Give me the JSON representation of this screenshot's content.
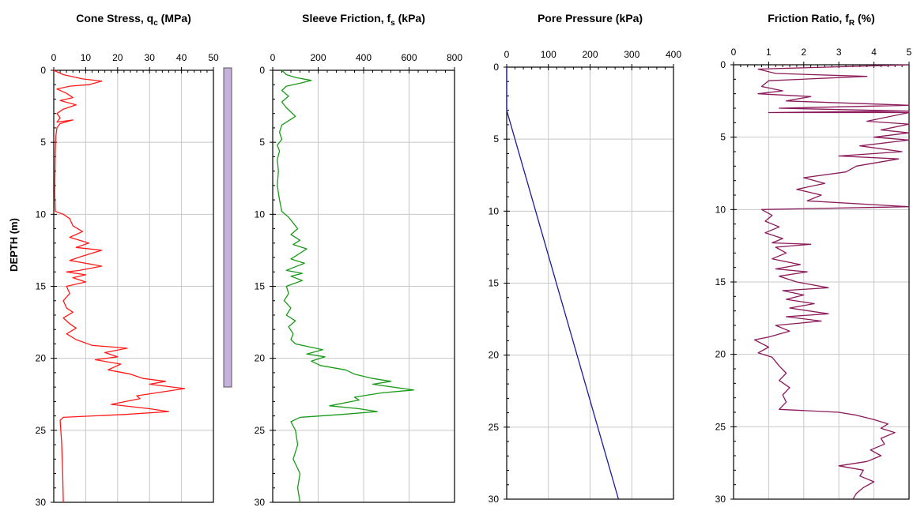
{
  "y_axis_label": "DEPTH  (m)",
  "chart_data": [
    {
      "type": "line",
      "title": "Cone Stress, qc  (MPa)",
      "title_parts": [
        "Cone Stress, q",
        "c",
        "  (MPa)"
      ],
      "xlim": [
        0,
        50
      ],
      "ylim": [
        0,
        30
      ],
      "x_ticks": [
        0,
        10,
        20,
        30,
        40,
        50
      ],
      "y_ticks": [
        0,
        5,
        10,
        15,
        20,
        25,
        30
      ],
      "y_reversed": true,
      "grid": true,
      "x_axis_position": "top",
      "color": "#ff1a1a",
      "series": [
        {
          "points": [
            [
              0,
              0
            ],
            [
              3,
              0.3
            ],
            [
              9,
              0.6
            ],
            [
              15,
              0.75
            ],
            [
              11,
              1.0
            ],
            [
              5,
              1.1
            ],
            [
              1,
              1.3
            ],
            [
              4,
              1.6
            ],
            [
              6,
              1.9
            ],
            [
              2,
              2.1
            ],
            [
              7,
              2.4
            ],
            [
              3,
              2.7
            ],
            [
              1,
              3.0
            ],
            [
              2,
              3.3
            ],
            [
              1,
              3.6
            ],
            [
              6,
              3.45
            ],
            [
              2,
              3.7
            ],
            [
              1,
              4.0
            ],
            [
              0.7,
              4.5
            ],
            [
              0.5,
              5.5
            ],
            [
              0.4,
              7
            ],
            [
              0.3,
              8.5
            ],
            [
              0.5,
              9.8
            ],
            [
              3,
              10.0
            ],
            [
              5,
              10.3
            ],
            [
              6,
              10.8
            ],
            [
              9,
              11.2
            ],
            [
              5,
              11.6
            ],
            [
              11,
              12.0
            ],
            [
              7,
              12.3
            ],
            [
              15,
              12.5
            ],
            [
              9,
              12.9
            ],
            [
              5,
              13.2
            ],
            [
              15,
              13.6
            ],
            [
              8,
              13.9
            ],
            [
              4,
              14.0
            ],
            [
              10,
              14.2
            ],
            [
              6,
              14.4
            ],
            [
              10,
              14.7
            ],
            [
              4,
              15.0
            ],
            [
              5,
              15.5
            ],
            [
              3,
              16.0
            ],
            [
              4,
              16.5
            ],
            [
              6,
              16.8
            ],
            [
              3,
              17.2
            ],
            [
              5,
              17.6
            ],
            [
              7,
              17.9
            ],
            [
              4,
              18.3
            ],
            [
              7,
              18.7
            ],
            [
              12,
              19.1
            ],
            [
              23,
              19.3
            ],
            [
              16,
              19.6
            ],
            [
              20,
              19.9
            ],
            [
              13,
              20.1
            ],
            [
              21,
              20.4
            ],
            [
              17,
              20.8
            ],
            [
              24,
              21.1
            ],
            [
              28,
              21.4
            ],
            [
              35,
              21.6
            ],
            [
              30,
              21.8
            ],
            [
              41,
              22.1
            ],
            [
              35,
              22.3
            ],
            [
              26,
              22.6
            ],
            [
              27,
              22.8
            ],
            [
              18,
              23.2
            ],
            [
              30,
              23.5
            ],
            [
              36,
              23.7
            ],
            [
              22,
              23.9
            ],
            [
              3,
              24.1
            ],
            [
              2,
              24.3
            ],
            [
              2.5,
              26
            ],
            [
              2.8,
              28
            ],
            [
              3,
              30
            ]
          ]
        }
      ]
    },
    {
      "type": "line",
      "title": "Sleeve Friction, fs  (kPa)",
      "title_parts": [
        "Sleeve Friction, f",
        "s",
        "  (kPa)"
      ],
      "xlim": [
        0,
        800
      ],
      "ylim": [
        0,
        30
      ],
      "x_ticks": [
        0,
        200,
        400,
        600,
        800
      ],
      "y_ticks": [
        0,
        5,
        10,
        15,
        20,
        25,
        30
      ],
      "y_reversed": true,
      "grid": true,
      "x_axis_position": "top",
      "color": "#1a9a1a",
      "series": [
        {
          "points": [
            [
              40,
              0
            ],
            [
              60,
              0.3
            ],
            [
              100,
              0.5
            ],
            [
              170,
              0.7
            ],
            [
              120,
              0.9
            ],
            [
              60,
              1.1
            ],
            [
              40,
              1.4
            ],
            [
              70,
              1.8
            ],
            [
              40,
              2.2
            ],
            [
              60,
              2.6
            ],
            [
              80,
              2.9
            ],
            [
              100,
              3.2
            ],
            [
              70,
              3.5
            ],
            [
              40,
              3.8
            ],
            [
              30,
              4.3
            ],
            [
              40,
              4.8
            ],
            [
              20,
              5.2
            ],
            [
              30,
              5.6
            ],
            [
              20,
              6.2
            ],
            [
              25,
              7
            ],
            [
              20,
              8
            ],
            [
              30,
              9
            ],
            [
              40,
              9.8
            ],
            [
              70,
              10.2
            ],
            [
              90,
              10.6
            ],
            [
              110,
              11.0
            ],
            [
              80,
              11.4
            ],
            [
              120,
              11.8
            ],
            [
              90,
              12.1
            ],
            [
              150,
              12.4
            ],
            [
              110,
              12.8
            ],
            [
              80,
              13.1
            ],
            [
              140,
              13.4
            ],
            [
              90,
              13.7
            ],
            [
              60,
              13.9
            ],
            [
              130,
              14.1
            ],
            [
              80,
              14.3
            ],
            [
              130,
              14.6
            ],
            [
              60,
              15.0
            ],
            [
              70,
              15.5
            ],
            [
              50,
              16.0
            ],
            [
              80,
              16.5
            ],
            [
              60,
              17.0
            ],
            [
              100,
              17.4
            ],
            [
              70,
              17.8
            ],
            [
              90,
              18.3
            ],
            [
              80,
              18.7
            ],
            [
              100,
              19.0
            ],
            [
              160,
              19.2
            ],
            [
              220,
              19.4
            ],
            [
              150,
              19.7
            ],
            [
              230,
              19.9
            ],
            [
              170,
              20.2
            ],
            [
              210,
              20.5
            ],
            [
              320,
              20.8
            ],
            [
              360,
              21.1
            ],
            [
              440,
              21.4
            ],
            [
              520,
              21.6
            ],
            [
              440,
              21.8
            ],
            [
              620,
              22.2
            ],
            [
              480,
              22.4
            ],
            [
              360,
              22.7
            ],
            [
              380,
              22.9
            ],
            [
              250,
              23.3
            ],
            [
              380,
              23.5
            ],
            [
              460,
              23.7
            ],
            [
              300,
              23.9
            ],
            [
              120,
              24.1
            ],
            [
              80,
              24.4
            ],
            [
              100,
              25
            ],
            [
              110,
              26
            ],
            [
              90,
              27
            ],
            [
              120,
              28
            ],
            [
              110,
              29
            ],
            [
              120,
              30
            ]
          ]
        }
      ]
    },
    {
      "type": "line",
      "title": "Pore Pressure (kPa)",
      "xlim": [
        0,
        400
      ],
      "ylim": [
        0,
        30
      ],
      "x_ticks": [
        0,
        100,
        200,
        300,
        400
      ],
      "y_ticks": [
        0,
        5,
        10,
        15,
        20,
        25,
        30
      ],
      "y_reversed": true,
      "grid": true,
      "x_axis_position": "top",
      "color": "#1a1a9a",
      "series": [
        {
          "points": [
            [
              0,
              0
            ],
            [
              0,
              3
            ],
            [
              268,
              30
            ]
          ]
        }
      ]
    },
    {
      "type": "line",
      "title": "Friction Ratio, fR  (%)",
      "title_parts": [
        "Friction Ratio, f",
        "R",
        "  (%)"
      ],
      "xlim": [
        0,
        5
      ],
      "ylim": [
        0,
        30
      ],
      "x_ticks": [
        0,
        1,
        2,
        3,
        4,
        5
      ],
      "y_ticks": [
        0,
        5,
        10,
        15,
        20,
        25,
        30
      ],
      "y_reversed": true,
      "grid": true,
      "x_axis_position": "top",
      "color": "#8b1a5a",
      "series": [
        {
          "points": [
            [
              5,
              0
            ],
            [
              0.7,
              0.3
            ],
            [
              1.2,
              0.6
            ],
            [
              3.8,
              0.8
            ],
            [
              1.0,
              1.1
            ],
            [
              0.8,
              1.5
            ],
            [
              1.4,
              1.8
            ],
            [
              0.7,
              2.0
            ],
            [
              2.2,
              2.2
            ],
            [
              1.5,
              2.5
            ],
            [
              5,
              2.8
            ],
            [
              1.3,
              3.0
            ],
            [
              5,
              3.2
            ],
            [
              1.0,
              3.3
            ],
            [
              5,
              3.3
            ],
            [
              3.8,
              3.9
            ],
            [
              5,
              4.1
            ],
            [
              4.2,
              4.5
            ],
            [
              5,
              4.7
            ],
            [
              4.0,
              5.0
            ],
            [
              5,
              5.2
            ],
            [
              3.6,
              5.6
            ],
            [
              4.8,
              6.0
            ],
            [
              3.0,
              6.3
            ],
            [
              4.7,
              6.5
            ],
            [
              3.5,
              7.0
            ],
            [
              3.2,
              7.4
            ],
            [
              2.0,
              7.8
            ],
            [
              2.6,
              8.2
            ],
            [
              1.8,
              8.6
            ],
            [
              2.5,
              9.0
            ],
            [
              2.1,
              9.4
            ],
            [
              5,
              9.8
            ],
            [
              0.8,
              10.0
            ],
            [
              1.1,
              10.4
            ],
            [
              0.9,
              10.8
            ],
            [
              1.3,
              11.2
            ],
            [
              0.9,
              11.6
            ],
            [
              1.4,
              12.0
            ],
            [
              1.1,
              12.3
            ],
            [
              2.2,
              12.4
            ],
            [
              1.2,
              12.6
            ],
            [
              1.5,
              13.0
            ],
            [
              1.1,
              13.4
            ],
            [
              1.9,
              13.8
            ],
            [
              1.2,
              14.1
            ],
            [
              2.1,
              14.3
            ],
            [
              1.3,
              14.6
            ],
            [
              1.8,
              15.0
            ],
            [
              2.7,
              15.4
            ],
            [
              1.4,
              15.6
            ],
            [
              2.0,
              15.9
            ],
            [
              1.5,
              16.2
            ],
            [
              2.3,
              16.5
            ],
            [
              1.6,
              16.8
            ],
            [
              2.7,
              17.2
            ],
            [
              1.5,
              17.4
            ],
            [
              2.5,
              17.7
            ],
            [
              1.2,
              18.0
            ],
            [
              1.6,
              18.4
            ],
            [
              1.0,
              18.8
            ],
            [
              0.6,
              19.0
            ],
            [
              1.0,
              19.5
            ],
            [
              0.7,
              19.9
            ],
            [
              1.1,
              20.2
            ],
            [
              1.3,
              20.8
            ],
            [
              1.5,
              21.3
            ],
            [
              1.3,
              21.8
            ],
            [
              1.6,
              22.3
            ],
            [
              1.4,
              22.8
            ],
            [
              1.5,
              23.3
            ],
            [
              1.3,
              23.8
            ],
            [
              3.0,
              24.0
            ],
            [
              3.5,
              24.2
            ],
            [
              4.0,
              24.5
            ],
            [
              4.4,
              24.8
            ],
            [
              4.2,
              25.1
            ],
            [
              4.6,
              25.4
            ],
            [
              4.2,
              25.8
            ],
            [
              4.3,
              26.2
            ],
            [
              3.9,
              26.6
            ],
            [
              4.2,
              27.0
            ],
            [
              3.8,
              27.4
            ],
            [
              3.0,
              27.7
            ],
            [
              3.7,
              28.0
            ],
            [
              3.6,
              28.4
            ],
            [
              4.0,
              28.8
            ],
            [
              3.7,
              29.2
            ],
            [
              3.5,
              29.6
            ],
            [
              3.4,
              30
            ]
          ]
        }
      ]
    }
  ]
}
